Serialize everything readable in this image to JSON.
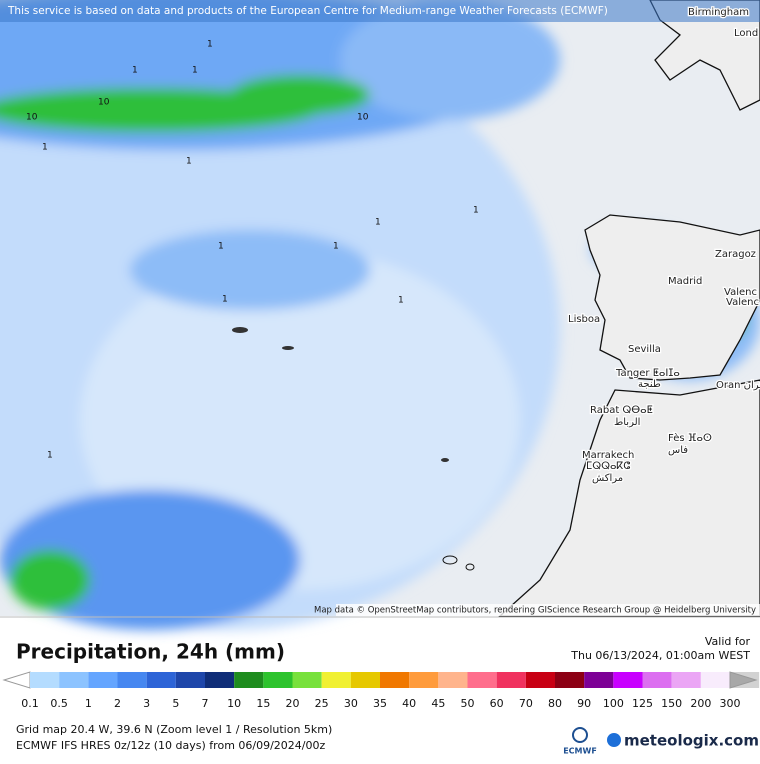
{
  "notice": "This service is based on data and products of the European Centre for Medium-range Weather Forecasts (ECMWF)",
  "attribution": "Map data © OpenStreetMap contributors, rendering GIScience Research Group @ Heidelberg University",
  "places": [
    "Birmingham",
    "Lond",
    "Zaragoz",
    "Madrid",
    "Valenc",
    "Valenc",
    "Lisboa",
    "Sevilla",
    "Tanger ⵟⴰⵏⵊⴰ",
    "طنجة",
    "Oran وهران",
    "Rabat ⵕⴱⴰⵟ",
    "الرباط",
    "Fès ⴼⴰⵙ",
    "فاس",
    "Marrakech",
    "ⵎⵕⵕⴰⴽⵛ",
    "مراكش"
  ],
  "contour_labels": [
    "1",
    "1",
    "1",
    "1",
    "1",
    "1",
    "1",
    "1",
    "1",
    "1",
    "1",
    "1",
    "10",
    "10",
    "10"
  ],
  "title": "Precipitation, 24h (mm)",
  "valid_label": "Valid for",
  "valid_time": "Thu 06/13/2024, 01:00am WEST",
  "legend": {
    "values": [
      0.1,
      0.5,
      1,
      2,
      3,
      5,
      7,
      10,
      15,
      20,
      25,
      30,
      35,
      40,
      45,
      50,
      60,
      70,
      80,
      90,
      100,
      125,
      150,
      200,
      300
    ],
    "colors": [
      "#b4dcff",
      "#8cc3ff",
      "#64a5ff",
      "#4687f0",
      "#2d64d7",
      "#1e46aa",
      "#0f2d78",
      "#1e8c1e",
      "#2dc32d",
      "#78e13c",
      "#f0f032",
      "#e6c800",
      "#f07800",
      "#ff9b3c",
      "#ffb48c",
      "#ff6e8c",
      "#f0325f",
      "#c80014",
      "#8c0014",
      "#7d0096",
      "#c800ff",
      "#dc6ef0",
      "#eba5f5",
      "#f8ecfc",
      "#d2d2d2"
    ],
    "under_color": "#ffffff",
    "over_color": "#a8a8a8"
  },
  "grid_info": "Grid map 20.4 W, 39.6 N (Zoom level 1 / Resolution 5km)",
  "model_info": "ECMWF IFS HRES 0z/12z (10 days)  from  06/09/2024/00z",
  "logo_left": "ECMWF",
  "logo_right": "meteologix.com"
}
